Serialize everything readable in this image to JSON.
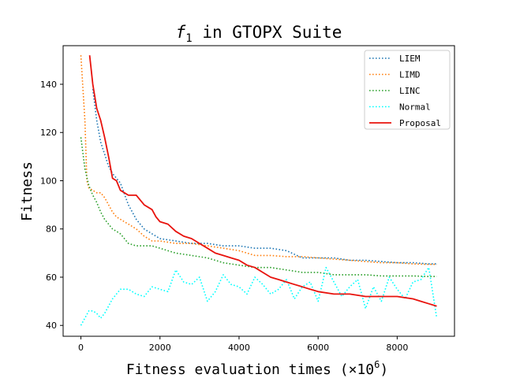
{
  "chart_data": {
    "type": "line",
    "title": "f",
    "title_subscript": "1",
    "title_rest": " in GTOPX Suite",
    "xlabel": "Fitness evaluation times (×10",
    "xlabel_exponent": "6",
    "xlabel_close": ")",
    "ylabel": "Fitness",
    "xlim": [
      -450,
      9450
    ],
    "ylim": [
      35.5,
      156
    ],
    "xticks": [
      0,
      2000,
      4000,
      6000,
      8000
    ],
    "xtick_labels": [
      "0",
      "2000",
      "4000",
      "6000",
      "8000"
    ],
    "yticks": [
      40,
      60,
      80,
      100,
      120,
      140
    ],
    "ytick_labels": [
      "40",
      "60",
      "80",
      "100",
      "120",
      "140"
    ],
    "grid": false,
    "legend_position": "top-right",
    "series": [
      {
        "name": "LIEM",
        "color": "#1f77b4",
        "style": "dotted",
        "x": [
          300,
          400,
          500,
          600,
          700,
          800,
          900,
          1000,
          1200,
          1400,
          1600,
          1800,
          2000,
          2400,
          2800,
          3200,
          3600,
          4000,
          4400,
          4800,
          5200,
          5600,
          6000,
          6400,
          6800,
          7200,
          7600,
          8000,
          8400,
          8800,
          9000
        ],
        "y": [
          138,
          125,
          116,
          111,
          106,
          103,
          101,
          99,
          90,
          84,
          80,
          78,
          76,
          75,
          74,
          74,
          73,
          73,
          72,
          72,
          71,
          68,
          68,
          68,
          67,
          67,
          66.5,
          66,
          66,
          65.5,
          65.5
        ]
      },
      {
        "name": "LIMD",
        "color": "#ff7f0e",
        "style": "dotted",
        "x": [
          0,
          100,
          150,
          200,
          300,
          400,
          500,
          600,
          700,
          800,
          900,
          1000,
          1200,
          1400,
          1600,
          1800,
          2000,
          2400,
          2800,
          3200,
          3600,
          4000,
          4400,
          4800,
          5200,
          5600,
          6000,
          6400,
          6800,
          7200,
          7600,
          8000,
          8400,
          8800,
          9000
        ],
        "y": [
          152,
          125,
          100,
          97,
          96,
          95,
          95,
          93,
          90,
          87,
          85,
          84,
          82,
          80,
          77,
          75,
          75,
          74,
          74,
          73,
          72,
          71,
          69,
          69,
          68.5,
          68.5,
          68,
          67.5,
          67,
          66.5,
          66,
          66,
          65.5,
          65.3,
          65.3
        ]
      },
      {
        "name": "LINC",
        "color": "#2ca02c",
        "style": "dotted",
        "x": [
          0,
          100,
          200,
          300,
          400,
          500,
          600,
          700,
          800,
          900,
          1000,
          1200,
          1400,
          1600,
          1800,
          2000,
          2400,
          2800,
          3200,
          3600,
          4000,
          4400,
          4800,
          5200,
          5600,
          6000,
          6400,
          6800,
          7200,
          7600,
          8000,
          8400,
          8800,
          9000
        ],
        "y": [
          118,
          105,
          98,
          94,
          91,
          87,
          84,
          82,
          80,
          79,
          78,
          74,
          73,
          73,
          73,
          72,
          70,
          69,
          68,
          66,
          65,
          64,
          64,
          63,
          62,
          62,
          61,
          61,
          61,
          60.5,
          60.5,
          60.5,
          60.3,
          60.3
        ]
      },
      {
        "name": "Normal",
        "color": "#00ffff",
        "style": "dotted",
        "x": [
          0,
          200,
          300,
          400,
          500,
          600,
          700,
          800,
          900,
          1000,
          1200,
          1400,
          1600,
          1800,
          2000,
          2200,
          2400,
          2600,
          2800,
          3000,
          3200,
          3400,
          3600,
          3800,
          4000,
          4200,
          4400,
          4600,
          4800,
          5000,
          5200,
          5400,
          5600,
          5800,
          6000,
          6200,
          6400,
          6600,
          6800,
          7000,
          7200,
          7400,
          7600,
          7800,
          8000,
          8200,
          8400,
          8600,
          8800,
          9000
        ],
        "y": [
          40,
          46,
          46,
          45,
          43,
          45,
          48,
          51,
          53,
          55,
          55,
          53,
          52,
          56,
          55,
          54,
          63,
          58,
          57,
          60,
          50,
          54,
          61,
          57,
          56,
          53,
          60,
          57,
          53,
          55,
          59,
          51,
          56,
          58,
          50,
          64,
          58,
          52,
          56,
          59,
          47,
          56,
          50,
          60,
          55,
          51,
          58,
          59,
          64,
          43
        ]
      },
      {
        "name": "Proposal",
        "color": "#e8120c",
        "style": "solid",
        "x": [
          220,
          300,
          400,
          500,
          600,
          700,
          800,
          900,
          1000,
          1200,
          1400,
          1600,
          1800,
          1900,
          2000,
          2200,
          2400,
          2600,
          2800,
          3000,
          3200,
          3400,
          3600,
          3800,
          4000,
          4200,
          4400,
          4600,
          4800,
          5000,
          5200,
          5400,
          5600,
          5800,
          6000,
          6400,
          6800,
          7200,
          7600,
          8000,
          8400,
          8600,
          8800,
          9000
        ],
        "y": [
          152,
          140,
          130,
          125,
          118,
          110,
          101,
          100,
          96,
          94,
          94,
          90,
          88,
          85,
          83,
          82,
          79,
          77,
          76,
          74,
          72,
          70,
          69,
          68,
          67,
          65,
          64,
          62,
          60,
          59,
          58,
          57,
          56,
          55,
          54,
          53,
          53,
          52,
          52,
          52,
          51,
          50,
          49,
          48
        ]
      }
    ]
  }
}
